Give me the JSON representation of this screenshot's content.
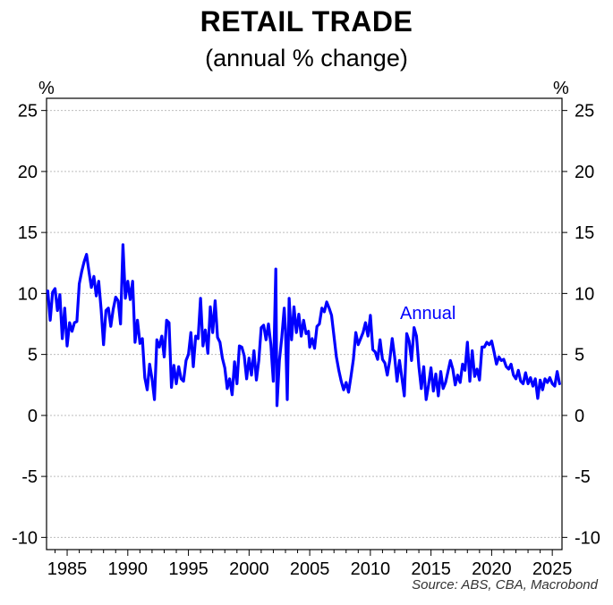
{
  "chart_data": {
    "type": "line",
    "title": "RETAIL TRADE",
    "subtitle": "(annual % change)",
    "ylabel_left": "%",
    "ylabel_right": "%",
    "xlim": [
      1983.3,
      2025.8
    ],
    "ylim": [
      -11,
      26
    ],
    "y_ticks": [
      25,
      20,
      15,
      10,
      5,
      0,
      -5,
      -10
    ],
    "x_ticks": [
      1985,
      1990,
      1995,
      2000,
      2005,
      2010,
      2015,
      2020,
      2025
    ],
    "grid": "horizontal dotted",
    "series": [
      {
        "name": "Annual",
        "color": "#0000ff",
        "label_position": "near 2013-2017 at y≈8",
        "points": [
          [
            1983.4,
            10.2
          ],
          [
            1983.6,
            7.8
          ],
          [
            1983.8,
            10.1
          ],
          [
            1984.0,
            10.4
          ],
          [
            1984.2,
            8.6
          ],
          [
            1984.4,
            9.9
          ],
          [
            1984.6,
            6.3
          ],
          [
            1984.8,
            8.8
          ],
          [
            1985.0,
            5.7
          ],
          [
            1985.2,
            7.6
          ],
          [
            1985.4,
            6.9
          ],
          [
            1985.6,
            7.6
          ],
          [
            1985.8,
            7.7
          ],
          [
            1986.0,
            10.8
          ],
          [
            1986.2,
            11.8
          ],
          [
            1986.4,
            12.6
          ],
          [
            1986.6,
            13.2
          ],
          [
            1986.8,
            11.8
          ],
          [
            1987.0,
            10.5
          ],
          [
            1987.2,
            11.4
          ],
          [
            1987.4,
            9.8
          ],
          [
            1987.6,
            11.0
          ],
          [
            1987.8,
            8.7
          ],
          [
            1988.0,
            5.8
          ],
          [
            1988.2,
            8.6
          ],
          [
            1988.4,
            8.8
          ],
          [
            1988.6,
            7.3
          ],
          [
            1988.8,
            8.7
          ],
          [
            1989.0,
            9.7
          ],
          [
            1989.2,
            9.4
          ],
          [
            1989.4,
            7.5
          ],
          [
            1989.6,
            14.0
          ],
          [
            1989.8,
            9.6
          ],
          [
            1990.0,
            11.0
          ],
          [
            1990.2,
            9.5
          ],
          [
            1990.4,
            11.0
          ],
          [
            1990.6,
            6.0
          ],
          [
            1990.8,
            7.8
          ],
          [
            1991.0,
            5.9
          ],
          [
            1991.2,
            6.3
          ],
          [
            1991.4,
            3.1
          ],
          [
            1991.6,
            2.1
          ],
          [
            1991.8,
            4.2
          ],
          [
            1992.0,
            3.0
          ],
          [
            1992.2,
            1.3
          ],
          [
            1992.4,
            6.2
          ],
          [
            1992.6,
            5.6
          ],
          [
            1992.8,
            6.5
          ],
          [
            1993.0,
            4.8
          ],
          [
            1993.2,
            7.8
          ],
          [
            1993.4,
            7.6
          ],
          [
            1993.6,
            2.3
          ],
          [
            1993.8,
            4.1
          ],
          [
            1994.0,
            2.6
          ],
          [
            1994.2,
            4.0
          ],
          [
            1994.4,
            3.0
          ],
          [
            1994.6,
            2.8
          ],
          [
            1994.8,
            4.5
          ],
          [
            1995.0,
            5.0
          ],
          [
            1995.2,
            6.8
          ],
          [
            1995.4,
            4.0
          ],
          [
            1995.6,
            6.5
          ],
          [
            1995.8,
            6.3
          ],
          [
            1996.0,
            9.6
          ],
          [
            1996.2,
            5.7
          ],
          [
            1996.4,
            7.0
          ],
          [
            1996.6,
            5.1
          ],
          [
            1996.8,
            8.9
          ],
          [
            1997.0,
            6.8
          ],
          [
            1997.2,
            9.4
          ],
          [
            1997.4,
            6.4
          ],
          [
            1997.6,
            6.0
          ],
          [
            1997.8,
            4.7
          ],
          [
            1998.0,
            3.9
          ],
          [
            1998.2,
            2.2
          ],
          [
            1998.4,
            3.0
          ],
          [
            1998.6,
            1.7
          ],
          [
            1998.8,
            4.4
          ],
          [
            1999.0,
            2.6
          ],
          [
            1999.2,
            5.7
          ],
          [
            1999.4,
            5.6
          ],
          [
            1999.6,
            4.9
          ],
          [
            1999.8,
            3.0
          ],
          [
            2000.0,
            4.7
          ],
          [
            2000.2,
            3.3
          ],
          [
            2000.4,
            5.3
          ],
          [
            2000.6,
            2.9
          ],
          [
            2000.8,
            4.5
          ],
          [
            2001.0,
            7.2
          ],
          [
            2001.2,
            7.4
          ],
          [
            2001.4,
            6.2
          ],
          [
            2001.6,
            7.5
          ],
          [
            2001.8,
            5.8
          ],
          [
            2002.0,
            2.8
          ],
          [
            2002.2,
            12.0
          ],
          [
            2002.3,
            0.8
          ],
          [
            2002.5,
            4.5
          ],
          [
            2002.7,
            6.4
          ],
          [
            2002.9,
            8.8
          ],
          [
            2003.0,
            7.0
          ],
          [
            2003.15,
            1.3
          ],
          [
            2003.3,
            9.6
          ],
          [
            2003.5,
            6.2
          ],
          [
            2003.7,
            8.9
          ],
          [
            2003.9,
            6.8
          ],
          [
            2004.1,
            8.3
          ],
          [
            2004.3,
            6.5
          ],
          [
            2004.5,
            7.8
          ],
          [
            2004.7,
            6.7
          ],
          [
            2004.9,
            6.9
          ],
          [
            2005.0,
            5.6
          ],
          [
            2005.2,
            6.3
          ],
          [
            2005.4,
            5.5
          ],
          [
            2005.6,
            7.3
          ],
          [
            2005.8,
            7.5
          ],
          [
            2006.0,
            8.8
          ],
          [
            2006.2,
            8.5
          ],
          [
            2006.4,
            9.3
          ],
          [
            2006.6,
            8.8
          ],
          [
            2006.8,
            8.2
          ],
          [
            2007.0,
            6.5
          ],
          [
            2007.2,
            4.8
          ],
          [
            2007.4,
            3.7
          ],
          [
            2007.6,
            2.8
          ],
          [
            2007.8,
            2.1
          ],
          [
            2008.0,
            2.7
          ],
          [
            2008.2,
            1.9
          ],
          [
            2008.4,
            3.2
          ],
          [
            2008.6,
            4.6
          ],
          [
            2008.8,
            6.8
          ],
          [
            2009.0,
            5.8
          ],
          [
            2009.2,
            6.3
          ],
          [
            2009.4,
            6.8
          ],
          [
            2009.6,
            7.6
          ],
          [
            2009.8,
            6.5
          ],
          [
            2010.0,
            8.2
          ],
          [
            2010.2,
            5.4
          ],
          [
            2010.4,
            5.2
          ],
          [
            2010.6,
            4.6
          ],
          [
            2010.8,
            6.2
          ],
          [
            2011.0,
            4.6
          ],
          [
            2011.2,
            4.3
          ],
          [
            2011.4,
            3.3
          ],
          [
            2011.6,
            4.5
          ],
          [
            2011.8,
            6.3
          ],
          [
            2012.0,
            4.8
          ],
          [
            2012.2,
            2.8
          ],
          [
            2012.4,
            4.5
          ],
          [
            2012.6,
            3.1
          ],
          [
            2012.8,
            1.6
          ],
          [
            2013.0,
            6.7
          ],
          [
            2013.2,
            6.1
          ],
          [
            2013.4,
            4.5
          ],
          [
            2013.6,
            7.2
          ],
          [
            2013.8,
            6.5
          ],
          [
            2014.0,
            4.0
          ],
          [
            2014.2,
            2.2
          ],
          [
            2014.4,
            4.0
          ],
          [
            2014.6,
            1.3
          ],
          [
            2014.8,
            2.5
          ],
          [
            2015.0,
            3.9
          ],
          [
            2015.2,
            2.0
          ],
          [
            2015.4,
            3.4
          ],
          [
            2015.6,
            1.6
          ],
          [
            2015.8,
            3.6
          ],
          [
            2016.0,
            2.2
          ],
          [
            2016.2,
            2.7
          ],
          [
            2016.4,
            3.6
          ],
          [
            2016.6,
            4.5
          ],
          [
            2016.8,
            3.8
          ],
          [
            2017.0,
            2.5
          ],
          [
            2017.2,
            3.3
          ],
          [
            2017.4,
            2.7
          ],
          [
            2017.6,
            4.2
          ],
          [
            2017.8,
            3.7
          ],
          [
            2018.0,
            6.0
          ],
          [
            2018.2,
            2.8
          ],
          [
            2018.4,
            5.3
          ],
          [
            2018.6,
            3.2
          ],
          [
            2018.8,
            3.8
          ],
          [
            2019.0,
            2.9
          ],
          [
            2019.2,
            5.6
          ],
          [
            2019.4,
            5.6
          ],
          [
            2019.6,
            6.0
          ],
          [
            2019.8,
            5.8
          ],
          [
            2020.0,
            6.1
          ],
          [
            2020.2,
            5.2
          ],
          [
            2020.4,
            4.2
          ],
          [
            2020.6,
            4.8
          ],
          [
            2020.8,
            4.5
          ],
          [
            2021.0,
            4.6
          ],
          [
            2021.2,
            4.0
          ],
          [
            2021.4,
            3.8
          ],
          [
            2021.6,
            4.2
          ],
          [
            2021.8,
            3.3
          ],
          [
            2022.0,
            3.0
          ],
          [
            2022.2,
            3.7
          ],
          [
            2022.4,
            2.8
          ],
          [
            2022.6,
            2.6
          ],
          [
            2022.8,
            3.5
          ],
          [
            2023.0,
            2.6
          ],
          [
            2023.2,
            3.1
          ],
          [
            2023.4,
            2.4
          ],
          [
            2023.6,
            3.0
          ],
          [
            2023.8,
            1.4
          ],
          [
            2024.0,
            2.9
          ],
          [
            2024.2,
            2.1
          ],
          [
            2024.4,
            3.0
          ],
          [
            2024.6,
            2.7
          ],
          [
            2024.8,
            3.1
          ],
          [
            2025.0,
            2.6
          ],
          [
            2025.2,
            2.4
          ],
          [
            2025.4,
            3.6
          ],
          [
            2025.6,
            2.6
          ]
        ]
      }
    ]
  },
  "source": "Source: ABS, CBA, Macrobond",
  "colors": {
    "series": "#0000ff",
    "grid": "#bdbdbd",
    "axis": "#000000"
  }
}
